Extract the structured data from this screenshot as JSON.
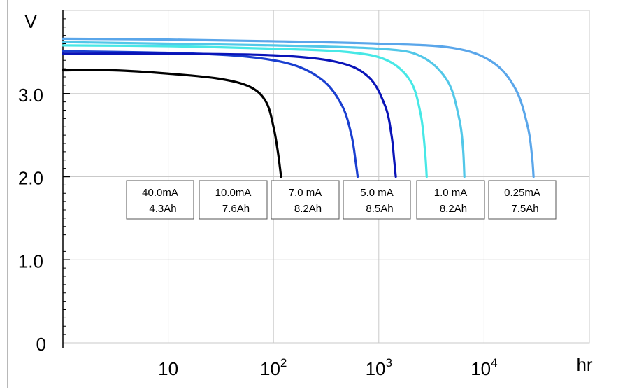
{
  "chart_data": {
    "type": "line",
    "title": "",
    "x_scale": "log",
    "xlim": [
      1,
      100000
    ],
    "ylim": [
      0,
      4.0
    ],
    "grid": true,
    "xlabel": "hr",
    "ylabel": "V",
    "y_ticks": [
      {
        "value": 0,
        "label": "0"
      },
      {
        "value": 1.0,
        "label": "1.0"
      },
      {
        "value": 2.0,
        "label": "2.0"
      },
      {
        "value": 3.0,
        "label": "3.0"
      }
    ],
    "x_ticks": [
      {
        "value": 10,
        "base": "10",
        "exp": ""
      },
      {
        "value": 100,
        "base": "10",
        "exp": "2"
      },
      {
        "value": 1000,
        "base": "10",
        "exp": "3"
      },
      {
        "value": 10000,
        "base": "10",
        "exp": "4"
      }
    ],
    "series": [
      {
        "color": "#000000",
        "points": [
          [
            1,
            3.28
          ],
          [
            3,
            3.28
          ],
          [
            10,
            3.24
          ],
          [
            30,
            3.18
          ],
          [
            60,
            3.08
          ],
          [
            85,
            2.9
          ],
          [
            100,
            2.6
          ],
          [
            110,
            2.3
          ],
          [
            118,
            2.0
          ]
        ],
        "label_current": "40.0mA",
        "label_capacity": "4.3Ah"
      },
      {
        "color": "#1a3fd0",
        "points": [
          [
            1,
            3.51
          ],
          [
            10,
            3.49
          ],
          [
            50,
            3.45
          ],
          [
            150,
            3.35
          ],
          [
            300,
            3.15
          ],
          [
            450,
            2.85
          ],
          [
            550,
            2.5
          ],
          [
            600,
            2.2
          ],
          [
            630,
            2.0
          ]
        ],
        "label_current": "10.0mA",
        "label_capacity": "7.6Ah"
      },
      {
        "color": "#0a14b8",
        "points": [
          [
            1,
            3.48
          ],
          [
            10,
            3.48
          ],
          [
            100,
            3.46
          ],
          [
            400,
            3.38
          ],
          [
            800,
            3.2
          ],
          [
            1150,
            2.85
          ],
          [
            1320,
            2.5
          ],
          [
            1400,
            2.2
          ],
          [
            1450,
            2.0
          ]
        ],
        "label_current": "7.0 mA",
        "label_capacity": "8.2Ah"
      },
      {
        "color": "#47e8e6",
        "points": [
          [
            1,
            3.58
          ],
          [
            10,
            3.57
          ],
          [
            100,
            3.54
          ],
          [
            500,
            3.5
          ],
          [
            1200,
            3.4
          ],
          [
            2000,
            3.15
          ],
          [
            2500,
            2.75
          ],
          [
            2750,
            2.3
          ],
          [
            2850,
            2.0
          ]
        ],
        "label_current": "5.0 mA",
        "label_capacity": "8.5Ah"
      },
      {
        "color": "#52c7e8",
        "points": [
          [
            1,
            3.62
          ],
          [
            10,
            3.6
          ],
          [
            100,
            3.58
          ],
          [
            1000,
            3.54
          ],
          [
            2500,
            3.45
          ],
          [
            4500,
            3.15
          ],
          [
            5800,
            2.7
          ],
          [
            6300,
            2.35
          ],
          [
            6500,
            2.0
          ]
        ],
        "label_current": "1.0 mA",
        "label_capacity": "8.2Ah"
      },
      {
        "color": "#5aa6ea",
        "points": [
          [
            1,
            3.66
          ],
          [
            10,
            3.65
          ],
          [
            100,
            3.63
          ],
          [
            1000,
            3.6
          ],
          [
            5000,
            3.55
          ],
          [
            12000,
            3.38
          ],
          [
            20000,
            3.05
          ],
          [
            26000,
            2.6
          ],
          [
            28500,
            2.25
          ],
          [
            29500,
            2.0
          ]
        ],
        "label_current": "0.25mA",
        "label_capacity": "7.5Ah"
      }
    ]
  }
}
